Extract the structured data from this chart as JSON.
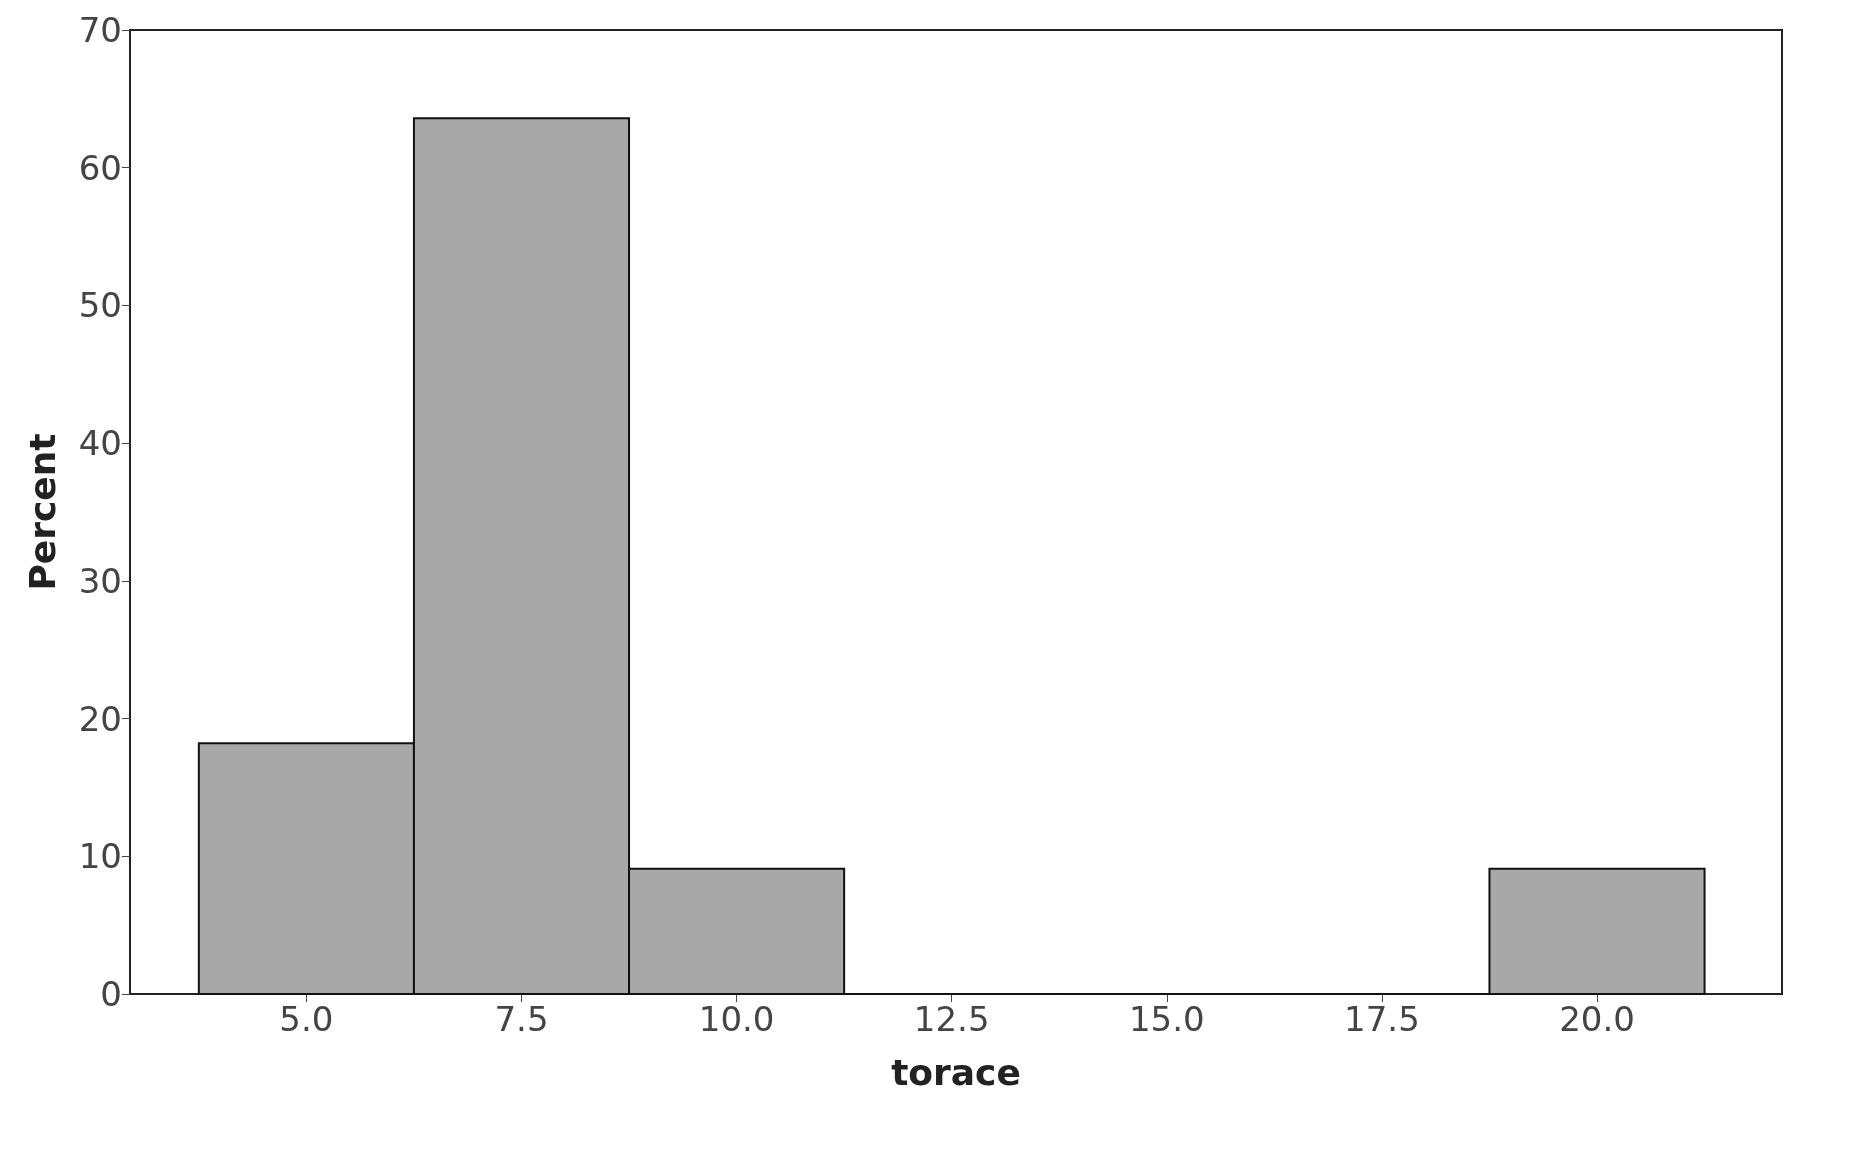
{
  "chart_data": {
    "type": "histogram",
    "xlabel": "torace",
    "ylabel": "Percent",
    "bins": [
      3.75,
      6.25,
      8.75,
      11.25,
      13.75,
      16.25,
      18.75,
      21.25
    ],
    "values": [
      18.2,
      63.6,
      9.1,
      0,
      0,
      0,
      9.1
    ],
    "color": "#a8a8a8",
    "xlim": [
      2.95,
      22.15
    ],
    "xticks": [
      {
        "value": 5,
        "label": "5.0"
      },
      {
        "value": 7.5,
        "label": "7.5"
      },
      {
        "value": 10,
        "label": "10.0"
      },
      {
        "value": 12.5,
        "label": "12.5"
      },
      {
        "value": 15,
        "label": "15.0"
      },
      {
        "value": 17.5,
        "label": "17.5"
      },
      {
        "value": 20,
        "label": "20.0"
      }
    ],
    "ylim": [
      0,
      70
    ],
    "yticks": [
      0,
      10,
      20,
      30,
      40,
      50,
      60,
      70
    ],
    "grid": false
  }
}
